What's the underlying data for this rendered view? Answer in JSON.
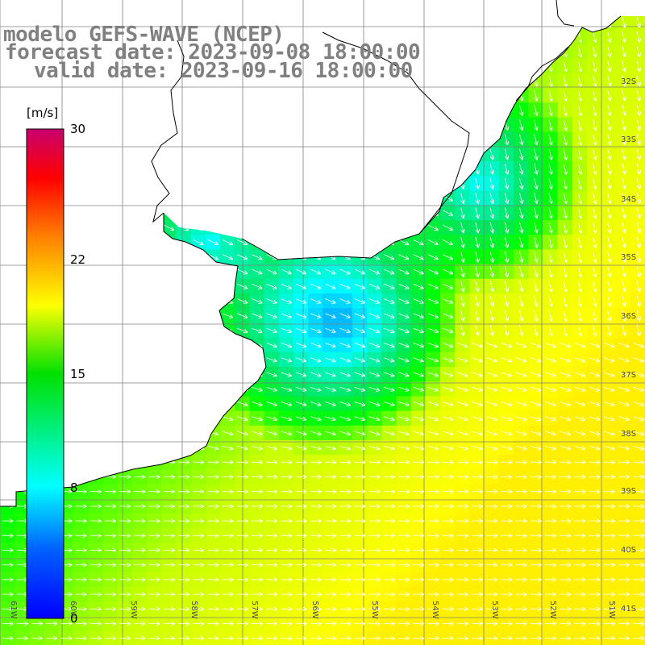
{
  "header": {
    "title": "modelo GEFS-WAVE (NCEP)",
    "forecast": "forecast date: 2023-09-08 18:00:00",
    "valid": "valid date: 2023-09-16 18:00:00"
  },
  "colorbar": {
    "units": "[m/s]",
    "ticks": [
      {
        "value": 0,
        "label": "0"
      },
      {
        "value": 8,
        "label": "8"
      },
      {
        "value": 15,
        "label": "15"
      },
      {
        "value": 22,
        "label": "22"
      },
      {
        "value": 30,
        "label": "30"
      }
    ],
    "min": 0,
    "max": 30,
    "colors": [
      "#0000ff",
      "#00b4ff",
      "#00ffff",
      "#00ff00",
      "#ffff00",
      "#ff8000",
      "#ff0000",
      "#c8006e"
    ]
  },
  "map": {
    "lat_labels": [
      "32S",
      "33S",
      "34S",
      "35S",
      "36S",
      "37S",
      "38S",
      "39S",
      "40S",
      "41S"
    ],
    "lon_labels": [
      "61W",
      "60W",
      "59W",
      "58W",
      "57W",
      "56W",
      "55W",
      "54W",
      "53W",
      "52W",
      "51W"
    ],
    "land_color": "#ffffff",
    "grid_color": "#808080",
    "coast_color": "#000000",
    "arrow_color": "#ffffff"
  }
}
